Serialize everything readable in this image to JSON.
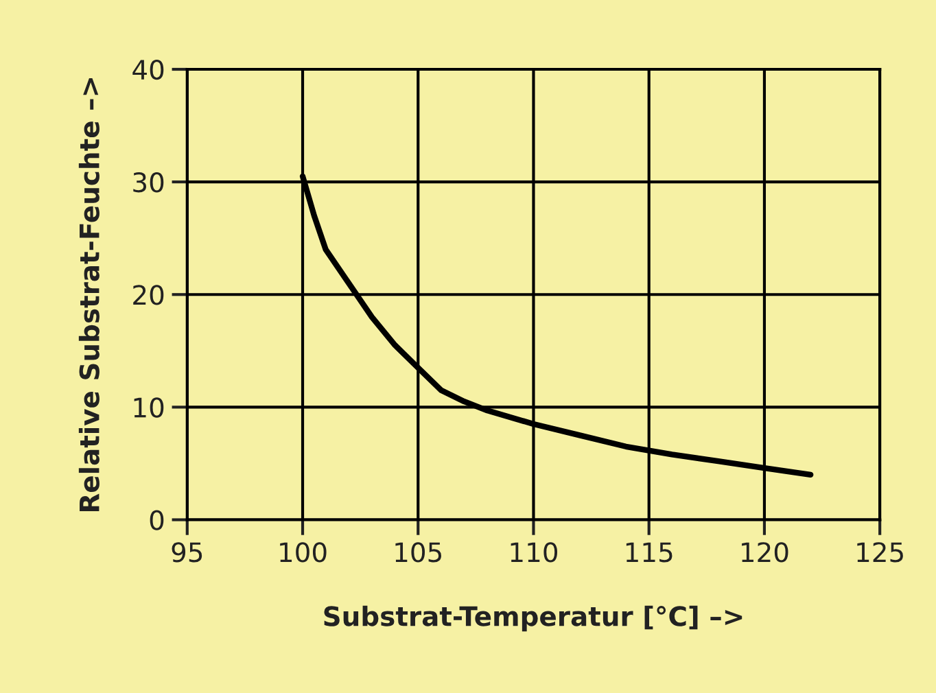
{
  "chart_data": {
    "type": "line",
    "xlabel": "Substrat-Temperatur [°C] –>",
    "ylabel": "Relative Substrat-Feuchte –>",
    "x": [
      100,
      100.5,
      101,
      102,
      103,
      104,
      105,
      106,
      107,
      108,
      110,
      112,
      114,
      116,
      118,
      120,
      122
    ],
    "series": [
      {
        "color": "#000000",
        "values": [
          30.5,
          27,
          24,
          21,
          18,
          15.5,
          13.5,
          11.5,
          10.5,
          9.7,
          8.5,
          7.5,
          6.5,
          5.8,
          5.2,
          4.6,
          4.0
        ]
      }
    ],
    "xlim": [
      95,
      125
    ],
    "ylim": [
      0,
      40
    ],
    "xticks": [
      95,
      100,
      105,
      110,
      115,
      120,
      125
    ],
    "yticks": [
      0,
      10,
      20,
      30,
      40
    ],
    "grid": true,
    "marker": "none",
    "line_style": "solid"
  }
}
